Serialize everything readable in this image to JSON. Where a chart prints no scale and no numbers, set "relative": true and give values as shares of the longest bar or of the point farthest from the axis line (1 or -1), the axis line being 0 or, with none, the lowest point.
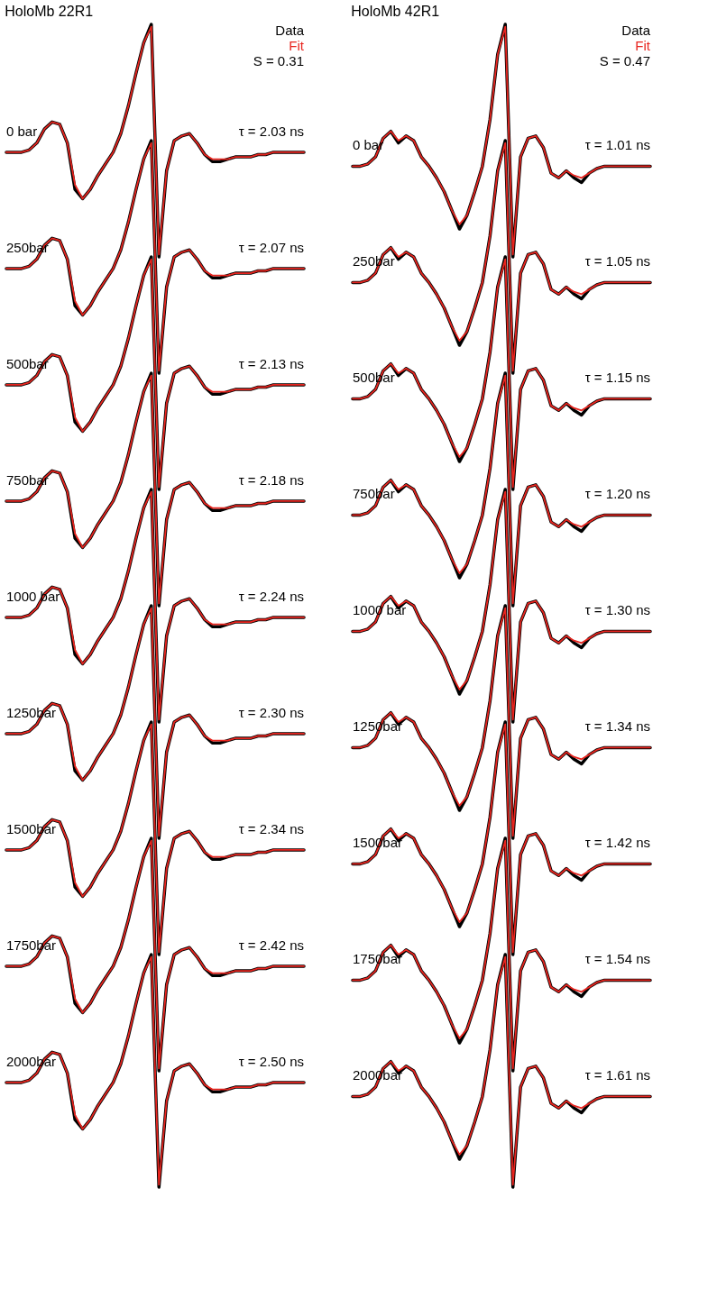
{
  "chart_data": [
    {
      "type": "line",
      "relative": true,
      "title": "HoloMb 22R1",
      "categories": [
        null,
        null,
        null,
        null,
        null,
        null,
        null,
        null,
        null,
        null,
        null,
        null,
        null,
        null,
        null,
        null,
        null,
        null,
        null,
        null,
        null,
        null,
        null,
        null,
        null,
        null,
        null,
        null,
        null,
        null,
        null,
        null,
        null,
        null,
        null,
        null,
        null,
        null,
        null,
        null
      ],
      "series": [
        {
          "name": "Data",
          "color": "#000000",
          "values": [
            0.89,
            0.89,
            0.89,
            0.892,
            0.898,
            0.91,
            0.916,
            0.914,
            0.898,
            0.858,
            0.85,
            0.858,
            0.87,
            0.88,
            0.89,
            0.906,
            0.93,
            0.958,
            0.984,
            1,
            0.8,
            0.874,
            0.9,
            0.904,
            0.906,
            0.898,
            0.888,
            0.882,
            0.882,
            0.884,
            0.886,
            0.886,
            0.886,
            0.888,
            0.888,
            0.89,
            0.89,
            0.89,
            0.89,
            0.89
          ]
        },
        {
          "name": "Fit",
          "color": "#e8251f",
          "values": [
            0.89,
            0.89,
            0.89,
            0.892,
            0.898,
            0.91,
            0.916,
            0.914,
            0.898,
            0.862,
            0.85,
            0.858,
            0.87,
            0.88,
            0.89,
            0.906,
            0.93,
            0.958,
            0.984,
            0.998,
            0.802,
            0.874,
            0.9,
            0.904,
            0.906,
            0.898,
            0.888,
            0.884,
            0.884,
            0.884,
            0.886,
            0.886,
            0.886,
            0.888,
            0.888,
            0.89,
            0.89,
            0.89,
            0.89,
            0.89
          ]
        },
        {
          "color": "#000000",
          "values": [
            0.79,
            0.79,
            0.79,
            0.792,
            0.798,
            0.81,
            0.816,
            0.814,
            0.798,
            0.758,
            0.75,
            0.758,
            0.77,
            0.78,
            0.79,
            0.806,
            0.83,
            0.858,
            0.884,
            0.9,
            0.7,
            0.774,
            0.8,
            0.804,
            0.806,
            0.798,
            0.788,
            0.782,
            0.782,
            0.784,
            0.786,
            0.786,
            0.786,
            0.788,
            0.788,
            0.79,
            0.79,
            0.79,
            0.79,
            0.79
          ]
        },
        {
          "color": "#e8251f",
          "values": [
            0.79,
            0.79,
            0.79,
            0.792,
            0.798,
            0.81,
            0.816,
            0.814,
            0.798,
            0.762,
            0.75,
            0.758,
            0.77,
            0.78,
            0.79,
            0.806,
            0.83,
            0.858,
            0.884,
            0.898,
            0.702,
            0.774,
            0.8,
            0.804,
            0.806,
            0.798,
            0.788,
            0.784,
            0.784,
            0.784,
            0.786,
            0.786,
            0.786,
            0.788,
            0.788,
            0.79,
            0.79,
            0.79,
            0.79,
            0.79
          ]
        },
        {
          "color": "#000000",
          "values": [
            0.69,
            0.69,
            0.69,
            0.692,
            0.698,
            0.71,
            0.716,
            0.714,
            0.698,
            0.658,
            0.65,
            0.658,
            0.67,
            0.68,
            0.69,
            0.706,
            0.73,
            0.758,
            0.784,
            0.8,
            0.6,
            0.674,
            0.7,
            0.704,
            0.706,
            0.698,
            0.688,
            0.682,
            0.682,
            0.684,
            0.686,
            0.686,
            0.686,
            0.688,
            0.688,
            0.69,
            0.69,
            0.69,
            0.69,
            0.69
          ]
        },
        {
          "color": "#e8251f",
          "values": [
            0.69,
            0.69,
            0.69,
            0.692,
            0.698,
            0.71,
            0.716,
            0.714,
            0.698,
            0.662,
            0.65,
            0.658,
            0.67,
            0.68,
            0.69,
            0.706,
            0.73,
            0.758,
            0.784,
            0.798,
            0.602,
            0.674,
            0.7,
            0.704,
            0.706,
            0.698,
            0.688,
            0.684,
            0.684,
            0.684,
            0.686,
            0.686,
            0.686,
            0.688,
            0.688,
            0.69,
            0.69,
            0.69,
            0.69,
            0.69
          ]
        },
        {
          "color": "#000000",
          "values": [
            0.59,
            0.59,
            0.59,
            0.592,
            0.598,
            0.61,
            0.616,
            0.614,
            0.598,
            0.558,
            0.55,
            0.558,
            0.57,
            0.58,
            0.59,
            0.606,
            0.63,
            0.658,
            0.684,
            0.7,
            0.5,
            0.574,
            0.6,
            0.604,
            0.606,
            0.598,
            0.588,
            0.582,
            0.582,
            0.584,
            0.586,
            0.586,
            0.586,
            0.588,
            0.588,
            0.59,
            0.59,
            0.59,
            0.59,
            0.59
          ]
        },
        {
          "color": "#e8251f",
          "values": [
            0.59,
            0.59,
            0.59,
            0.592,
            0.598,
            0.61,
            0.616,
            0.614,
            0.598,
            0.562,
            0.55,
            0.558,
            0.57,
            0.58,
            0.59,
            0.606,
            0.63,
            0.658,
            0.684,
            0.698,
            0.502,
            0.574,
            0.6,
            0.604,
            0.606,
            0.598,
            0.588,
            0.584,
            0.584,
            0.584,
            0.586,
            0.586,
            0.586,
            0.588,
            0.588,
            0.59,
            0.59,
            0.59,
            0.59,
            0.59
          ]
        },
        {
          "color": "#000000",
          "values": [
            0.49,
            0.49,
            0.49,
            0.492,
            0.498,
            0.51,
            0.516,
            0.514,
            0.498,
            0.458,
            0.45,
            0.458,
            0.47,
            0.48,
            0.49,
            0.506,
            0.53,
            0.558,
            0.584,
            0.6,
            0.4,
            0.474,
            0.5,
            0.504,
            0.506,
            0.498,
            0.488,
            0.482,
            0.482,
            0.484,
            0.486,
            0.486,
            0.486,
            0.488,
            0.488,
            0.49,
            0.49,
            0.49,
            0.49,
            0.49
          ]
        },
        {
          "color": "#e8251f",
          "values": [
            0.49,
            0.49,
            0.49,
            0.492,
            0.498,
            0.51,
            0.516,
            0.514,
            0.498,
            0.462,
            0.45,
            0.458,
            0.47,
            0.48,
            0.49,
            0.506,
            0.53,
            0.558,
            0.584,
            0.598,
            0.402,
            0.474,
            0.5,
            0.504,
            0.506,
            0.498,
            0.488,
            0.484,
            0.484,
            0.484,
            0.486,
            0.486,
            0.486,
            0.488,
            0.488,
            0.49,
            0.49,
            0.49,
            0.49,
            0.49
          ]
        },
        {
          "color": "#000000",
          "values": [
            0.39,
            0.39,
            0.39,
            0.392,
            0.398,
            0.41,
            0.416,
            0.414,
            0.398,
            0.358,
            0.35,
            0.358,
            0.37,
            0.38,
            0.39,
            0.406,
            0.43,
            0.458,
            0.484,
            0.5,
            0.3,
            0.374,
            0.4,
            0.404,
            0.406,
            0.398,
            0.388,
            0.382,
            0.382,
            0.384,
            0.386,
            0.386,
            0.386,
            0.388,
            0.388,
            0.39,
            0.39,
            0.39,
            0.39,
            0.39
          ]
        },
        {
          "color": "#e8251f",
          "values": [
            0.39,
            0.39,
            0.39,
            0.392,
            0.398,
            0.41,
            0.416,
            0.414,
            0.398,
            0.362,
            0.35,
            0.358,
            0.37,
            0.38,
            0.39,
            0.406,
            0.43,
            0.458,
            0.484,
            0.498,
            0.302,
            0.374,
            0.4,
            0.404,
            0.406,
            0.398,
            0.388,
            0.384,
            0.384,
            0.384,
            0.386,
            0.386,
            0.386,
            0.388,
            0.388,
            0.39,
            0.39,
            0.39,
            0.39,
            0.39
          ]
        },
        {
          "color": "#000000",
          "values": [
            0.29,
            0.29,
            0.29,
            0.292,
            0.298,
            0.31,
            0.316,
            0.314,
            0.298,
            0.258,
            0.25,
            0.258,
            0.27,
            0.28,
            0.29,
            0.306,
            0.33,
            0.358,
            0.384,
            0.4,
            0.2,
            0.274,
            0.3,
            0.304,
            0.306,
            0.298,
            0.288,
            0.282,
            0.282,
            0.284,
            0.286,
            0.286,
            0.286,
            0.288,
            0.288,
            0.29,
            0.29,
            0.29,
            0.29,
            0.29
          ]
        },
        {
          "color": "#e8251f",
          "values": [
            0.29,
            0.29,
            0.29,
            0.292,
            0.298,
            0.31,
            0.316,
            0.314,
            0.298,
            0.262,
            0.25,
            0.258,
            0.27,
            0.28,
            0.29,
            0.306,
            0.33,
            0.358,
            0.384,
            0.398,
            0.202,
            0.274,
            0.3,
            0.304,
            0.306,
            0.298,
            0.288,
            0.284,
            0.284,
            0.284,
            0.286,
            0.286,
            0.286,
            0.288,
            0.288,
            0.29,
            0.29,
            0.29,
            0.29,
            0.29
          ]
        },
        {
          "color": "#000000",
          "values": [
            0.19,
            0.19,
            0.19,
            0.192,
            0.198,
            0.21,
            0.216,
            0.214,
            0.198,
            0.158,
            0.15,
            0.158,
            0.17,
            0.18,
            0.19,
            0.206,
            0.23,
            0.258,
            0.284,
            0.3,
            0.1,
            0.174,
            0.2,
            0.204,
            0.206,
            0.198,
            0.188,
            0.182,
            0.182,
            0.184,
            0.186,
            0.186,
            0.186,
            0.188,
            0.188,
            0.19,
            0.19,
            0.19,
            0.19,
            0.19
          ]
        },
        {
          "color": "#e8251f",
          "values": [
            0.19,
            0.19,
            0.19,
            0.192,
            0.198,
            0.21,
            0.216,
            0.214,
            0.198,
            0.162,
            0.15,
            0.158,
            0.17,
            0.18,
            0.19,
            0.206,
            0.23,
            0.258,
            0.284,
            0.298,
            0.102,
            0.174,
            0.2,
            0.204,
            0.206,
            0.198,
            0.188,
            0.184,
            0.184,
            0.184,
            0.186,
            0.186,
            0.186,
            0.188,
            0.188,
            0.19,
            0.19,
            0.19,
            0.19,
            0.19
          ]
        },
        {
          "color": "#000000",
          "values": [
            0.09,
            0.09,
            0.09,
            0.092,
            0.098,
            0.11,
            0.116,
            0.114,
            0.098,
            0.058,
            0.05,
            0.058,
            0.07,
            0.08,
            0.09,
            0.106,
            0.13,
            0.158,
            0.184,
            0.2,
            0,
            0.074,
            0.1,
            0.104,
            0.106,
            0.098,
            0.088,
            0.082,
            0.082,
            0.084,
            0.086,
            0.086,
            0.086,
            0.088,
            0.088,
            0.09,
            0.09,
            0.09,
            0.09,
            0.09
          ]
        },
        {
          "color": "#e8251f",
          "values": [
            0.09,
            0.09,
            0.09,
            0.092,
            0.098,
            0.11,
            0.116,
            0.114,
            0.098,
            0.062,
            0.05,
            0.058,
            0.07,
            0.08,
            0.09,
            0.106,
            0.13,
            0.158,
            0.184,
            0.198,
            0.002,
            0.074,
            0.1,
            0.104,
            0.106,
            0.098,
            0.088,
            0.084,
            0.084,
            0.084,
            0.086,
            0.086,
            0.086,
            0.088,
            0.088,
            0.09,
            0.09,
            0.09,
            0.09,
            0.09
          ]
        }
      ],
      "annotations": [
        "0 bar",
        "τ = 2.03 ns",
        "250bar",
        "τ = 2.07 ns",
        "500bar",
        "τ = 2.13 ns",
        "750bar",
        "τ = 2.18 ns",
        "1000 bar",
        "τ = 2.24 ns",
        "1250bar",
        "τ = 2.30 ns",
        "1500bar",
        "τ = 2.34 ns",
        "1750bar",
        "τ = 2.42 ns",
        "2000bar",
        "τ = 2.50 ns",
        "S = 0.31"
      ]
    },
    {
      "type": "line",
      "relative": true,
      "title": "HoloMb 42R1",
      "categories": [
        null,
        null,
        null,
        null,
        null,
        null,
        null,
        null,
        null,
        null,
        null,
        null,
        null,
        null,
        null,
        null,
        null,
        null,
        null,
        null,
        null,
        null,
        null,
        null,
        null,
        null,
        null,
        null,
        null,
        null,
        null,
        null,
        null,
        null,
        null,
        null,
        null,
        null,
        null,
        null
      ],
      "series": [
        {
          "name": "Data",
          "color": "#000000",
          "values": [
            0.878,
            0.878,
            0.88,
            0.886,
            0.902,
            0.908,
            0.898,
            0.904,
            0.9,
            0.886,
            0.878,
            0.868,
            0.856,
            0.84,
            0.824,
            0.836,
            0.856,
            0.878,
            0.918,
            0.974,
            1,
            0.8,
            0.886,
            0.902,
            0.904,
            0.894,
            0.872,
            0.868,
            0.874,
            0.868,
            0.864,
            0.872,
            0.876,
            0.878,
            0.878,
            0.878,
            0.878,
            0.878,
            0.878,
            0.878
          ]
        },
        {
          "name": "Fit",
          "color": "#e8251f",
          "values": [
            0.878,
            0.878,
            0.88,
            0.886,
            0.902,
            0.908,
            0.9,
            0.904,
            0.9,
            0.886,
            0.878,
            0.868,
            0.856,
            0.84,
            0.828,
            0.836,
            0.856,
            0.878,
            0.918,
            0.974,
            0.998,
            0.802,
            0.886,
            0.902,
            0.904,
            0.894,
            0.872,
            0.868,
            0.874,
            0.87,
            0.868,
            0.872,
            0.876,
            0.878,
            0.878,
            0.878,
            0.878,
            0.878,
            0.878,
            0.878
          ]
        },
        {
          "color": "#000000",
          "values": [
            0.778,
            0.778,
            0.78,
            0.786,
            0.802,
            0.808,
            0.798,
            0.804,
            0.8,
            0.786,
            0.778,
            0.768,
            0.756,
            0.74,
            0.724,
            0.736,
            0.756,
            0.778,
            0.818,
            0.874,
            0.9,
            0.7,
            0.786,
            0.802,
            0.804,
            0.794,
            0.772,
            0.768,
            0.774,
            0.768,
            0.764,
            0.772,
            0.776,
            0.778,
            0.778,
            0.778,
            0.778,
            0.778,
            0.778,
            0.778
          ]
        },
        {
          "color": "#e8251f",
          "values": [
            0.778,
            0.778,
            0.78,
            0.786,
            0.802,
            0.808,
            0.8,
            0.804,
            0.8,
            0.786,
            0.778,
            0.768,
            0.756,
            0.74,
            0.728,
            0.736,
            0.756,
            0.778,
            0.818,
            0.874,
            0.898,
            0.702,
            0.786,
            0.802,
            0.804,
            0.794,
            0.772,
            0.768,
            0.774,
            0.77,
            0.768,
            0.772,
            0.776,
            0.778,
            0.778,
            0.778,
            0.778,
            0.778,
            0.778,
            0.778
          ]
        },
        {
          "color": "#000000",
          "values": [
            0.678,
            0.678,
            0.68,
            0.686,
            0.702,
            0.708,
            0.698,
            0.704,
            0.7,
            0.686,
            0.678,
            0.668,
            0.656,
            0.64,
            0.624,
            0.636,
            0.656,
            0.678,
            0.718,
            0.774,
            0.8,
            0.6,
            0.686,
            0.702,
            0.704,
            0.694,
            0.672,
            0.668,
            0.674,
            0.668,
            0.664,
            0.672,
            0.676,
            0.678,
            0.678,
            0.678,
            0.678,
            0.678,
            0.678,
            0.678
          ]
        },
        {
          "color": "#e8251f",
          "values": [
            0.678,
            0.678,
            0.68,
            0.686,
            0.702,
            0.708,
            0.7,
            0.704,
            0.7,
            0.686,
            0.678,
            0.668,
            0.656,
            0.64,
            0.628,
            0.636,
            0.656,
            0.678,
            0.718,
            0.774,
            0.798,
            0.602,
            0.686,
            0.702,
            0.704,
            0.694,
            0.672,
            0.668,
            0.674,
            0.67,
            0.668,
            0.672,
            0.676,
            0.678,
            0.678,
            0.678,
            0.678,
            0.678,
            0.678,
            0.678
          ]
        },
        {
          "color": "#000000",
          "values": [
            0.578,
            0.578,
            0.58,
            0.586,
            0.602,
            0.608,
            0.598,
            0.604,
            0.6,
            0.586,
            0.578,
            0.568,
            0.556,
            0.54,
            0.524,
            0.536,
            0.556,
            0.578,
            0.618,
            0.674,
            0.7,
            0.5,
            0.586,
            0.602,
            0.604,
            0.594,
            0.572,
            0.568,
            0.574,
            0.568,
            0.564,
            0.572,
            0.576,
            0.578,
            0.578,
            0.578,
            0.578,
            0.578,
            0.578,
            0.578
          ]
        },
        {
          "color": "#e8251f",
          "values": [
            0.578,
            0.578,
            0.58,
            0.586,
            0.602,
            0.608,
            0.6,
            0.604,
            0.6,
            0.586,
            0.578,
            0.568,
            0.556,
            0.54,
            0.528,
            0.536,
            0.556,
            0.578,
            0.618,
            0.674,
            0.698,
            0.502,
            0.586,
            0.602,
            0.604,
            0.594,
            0.572,
            0.568,
            0.574,
            0.57,
            0.568,
            0.572,
            0.576,
            0.578,
            0.578,
            0.578,
            0.578,
            0.578,
            0.578,
            0.578
          ]
        },
        {
          "color": "#000000",
          "values": [
            0.478,
            0.478,
            0.48,
            0.486,
            0.502,
            0.508,
            0.498,
            0.504,
            0.5,
            0.486,
            0.478,
            0.468,
            0.456,
            0.44,
            0.424,
            0.436,
            0.456,
            0.478,
            0.518,
            0.574,
            0.6,
            0.4,
            0.486,
            0.502,
            0.504,
            0.494,
            0.472,
            0.468,
            0.474,
            0.468,
            0.464,
            0.472,
            0.476,
            0.478,
            0.478,
            0.478,
            0.478,
            0.478,
            0.478,
            0.478
          ]
        },
        {
          "color": "#e8251f",
          "values": [
            0.478,
            0.478,
            0.48,
            0.486,
            0.502,
            0.508,
            0.5,
            0.504,
            0.5,
            0.486,
            0.478,
            0.468,
            0.456,
            0.44,
            0.428,
            0.436,
            0.456,
            0.478,
            0.518,
            0.574,
            0.598,
            0.402,
            0.486,
            0.502,
            0.504,
            0.494,
            0.472,
            0.468,
            0.474,
            0.47,
            0.468,
            0.472,
            0.476,
            0.478,
            0.478,
            0.478,
            0.478,
            0.478,
            0.478,
            0.478
          ]
        },
        {
          "color": "#000000",
          "values": [
            0.378,
            0.378,
            0.38,
            0.386,
            0.402,
            0.408,
            0.398,
            0.404,
            0.4,
            0.386,
            0.378,
            0.368,
            0.356,
            0.34,
            0.324,
            0.336,
            0.356,
            0.378,
            0.418,
            0.474,
            0.5,
            0.3,
            0.386,
            0.402,
            0.404,
            0.394,
            0.372,
            0.368,
            0.374,
            0.368,
            0.364,
            0.372,
            0.376,
            0.378,
            0.378,
            0.378,
            0.378,
            0.378,
            0.378,
            0.378
          ]
        },
        {
          "color": "#e8251f",
          "values": [
            0.378,
            0.378,
            0.38,
            0.386,
            0.402,
            0.408,
            0.4,
            0.404,
            0.4,
            0.386,
            0.378,
            0.368,
            0.356,
            0.34,
            0.328,
            0.336,
            0.356,
            0.378,
            0.418,
            0.474,
            0.498,
            0.302,
            0.386,
            0.402,
            0.404,
            0.394,
            0.372,
            0.368,
            0.374,
            0.37,
            0.368,
            0.372,
            0.376,
            0.378,
            0.378,
            0.378,
            0.378,
            0.378,
            0.378,
            0.378
          ]
        },
        {
          "color": "#000000",
          "values": [
            0.278,
            0.278,
            0.28,
            0.286,
            0.302,
            0.308,
            0.298,
            0.304,
            0.3,
            0.286,
            0.278,
            0.268,
            0.256,
            0.24,
            0.224,
            0.236,
            0.256,
            0.278,
            0.318,
            0.374,
            0.4,
            0.2,
            0.286,
            0.302,
            0.304,
            0.294,
            0.272,
            0.268,
            0.274,
            0.268,
            0.264,
            0.272,
            0.276,
            0.278,
            0.278,
            0.278,
            0.278,
            0.278,
            0.278,
            0.278
          ]
        },
        {
          "color": "#e8251f",
          "values": [
            0.278,
            0.278,
            0.28,
            0.286,
            0.302,
            0.308,
            0.3,
            0.304,
            0.3,
            0.286,
            0.278,
            0.268,
            0.256,
            0.24,
            0.228,
            0.236,
            0.256,
            0.278,
            0.318,
            0.374,
            0.398,
            0.202,
            0.286,
            0.302,
            0.304,
            0.294,
            0.272,
            0.268,
            0.274,
            0.27,
            0.268,
            0.272,
            0.276,
            0.278,
            0.278,
            0.278,
            0.278,
            0.278,
            0.278,
            0.278
          ]
        },
        {
          "color": "#000000",
          "values": [
            0.178,
            0.178,
            0.18,
            0.186,
            0.202,
            0.208,
            0.198,
            0.204,
            0.2,
            0.186,
            0.178,
            0.168,
            0.156,
            0.14,
            0.124,
            0.136,
            0.156,
            0.178,
            0.218,
            0.274,
            0.3,
            0.1,
            0.186,
            0.202,
            0.204,
            0.194,
            0.172,
            0.168,
            0.174,
            0.168,
            0.164,
            0.172,
            0.176,
            0.178,
            0.178,
            0.178,
            0.178,
            0.178,
            0.178,
            0.178
          ]
        },
        {
          "color": "#e8251f",
          "values": [
            0.178,
            0.178,
            0.18,
            0.186,
            0.202,
            0.208,
            0.2,
            0.204,
            0.2,
            0.186,
            0.178,
            0.168,
            0.156,
            0.14,
            0.128,
            0.136,
            0.156,
            0.178,
            0.218,
            0.274,
            0.298,
            0.102,
            0.186,
            0.202,
            0.204,
            0.194,
            0.172,
            0.168,
            0.174,
            0.17,
            0.168,
            0.172,
            0.176,
            0.178,
            0.178,
            0.178,
            0.178,
            0.178,
            0.178,
            0.178
          ]
        },
        {
          "color": "#000000",
          "values": [
            0.078,
            0.078,
            0.08,
            0.086,
            0.102,
            0.108,
            0.098,
            0.104,
            0.1,
            0.086,
            0.078,
            0.068,
            0.056,
            0.04,
            0.024,
            0.036,
            0.056,
            0.078,
            0.118,
            0.174,
            0.2,
            0,
            0.086,
            0.102,
            0.104,
            0.094,
            0.072,
            0.068,
            0.074,
            0.068,
            0.064,
            0.072,
            0.076,
            0.078,
            0.078,
            0.078,
            0.078,
            0.078,
            0.078,
            0.078
          ]
        },
        {
          "color": "#e8251f",
          "values": [
            0.078,
            0.078,
            0.08,
            0.086,
            0.102,
            0.108,
            0.1,
            0.104,
            0.1,
            0.086,
            0.078,
            0.068,
            0.056,
            0.04,
            0.028,
            0.036,
            0.056,
            0.078,
            0.118,
            0.174,
            0.198,
            0.002,
            0.086,
            0.102,
            0.104,
            0.094,
            0.072,
            0.068,
            0.074,
            0.07,
            0.068,
            0.072,
            0.076,
            0.078,
            0.078,
            0.078,
            0.078,
            0.078,
            0.078,
            0.078
          ]
        }
      ],
      "annotations": [
        "0 bar",
        "τ = 1.01 ns",
        "250bar",
        "τ = 1.05 ns",
        "500bar",
        "τ = 1.15 ns",
        "750bar",
        "τ = 1.20 ns",
        "1000 bar",
        "τ = 1.30 ns",
        "1250bar",
        "τ = 1.34 ns",
        "1500bar",
        "τ = 1.42 ns",
        "1750bar",
        "τ = 1.54 ns",
        "2000bar",
        "τ = 1.61 ns",
        "S = 0.47"
      ]
    }
  ]
}
